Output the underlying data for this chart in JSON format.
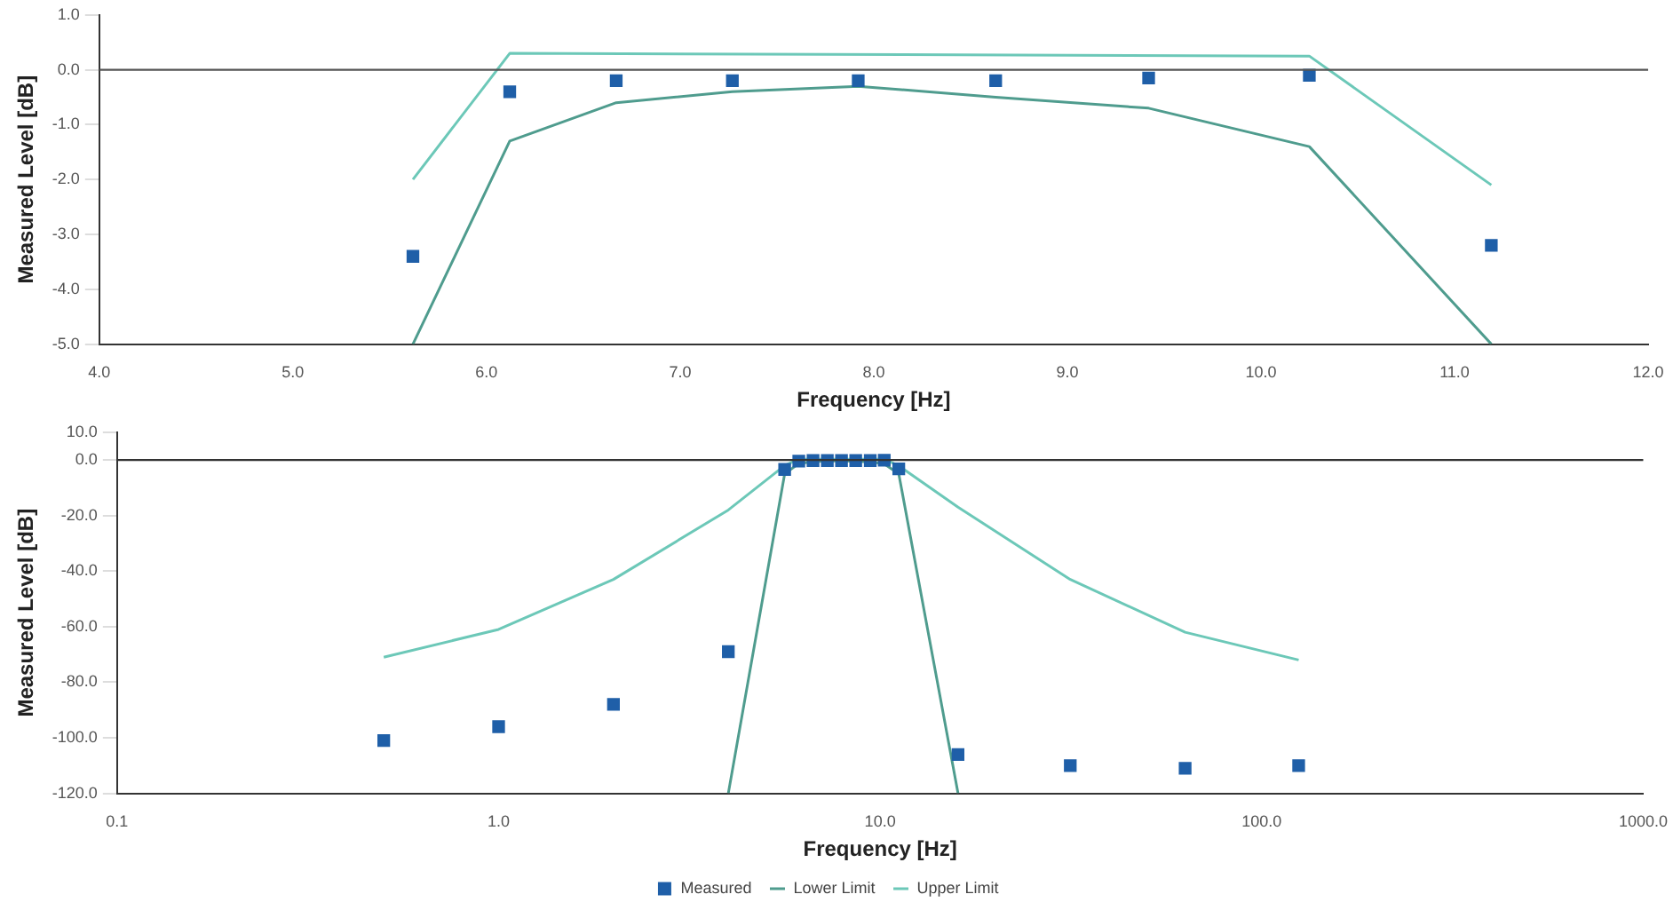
{
  "chart_data": [
    {
      "type": "line",
      "xlabel": "Frequency [Hz]",
      "ylabel": "Measured Level [dB]",
      "xlim": [
        4,
        12
      ],
      "ylim": [
        -5,
        1
      ],
      "xticks": [
        {
          "value": 4,
          "label": "4.0"
        },
        {
          "value": 5,
          "label": "5.0"
        },
        {
          "value": 6,
          "label": "6.0"
        },
        {
          "value": 7,
          "label": "7.0"
        },
        {
          "value": 8,
          "label": "8.0"
        },
        {
          "value": 9,
          "label": "9.0"
        },
        {
          "value": 10,
          "label": "10.0"
        },
        {
          "value": 11,
          "label": "11.0"
        },
        {
          "value": 12,
          "label": "12.0"
        }
      ],
      "yticks": [
        {
          "value": 1,
          "label": "1.0"
        },
        {
          "value": 0,
          "label": "0.0"
        },
        {
          "value": -1,
          "label": "-1.0"
        },
        {
          "value": -2,
          "label": "-2.0"
        },
        {
          "value": -3,
          "label": "-3.0"
        },
        {
          "value": -4,
          "label": "-4.0"
        },
        {
          "value": -5,
          "label": "-5.0"
        }
      ],
      "grid": false,
      "legend": false,
      "ref_lines": [
        {
          "axis": "y",
          "value": 0,
          "color": "#555555"
        }
      ],
      "series": [
        {
          "type": "scatter",
          "marker": "square",
          "color": "#1f5fa8",
          "x": [
            5.62,
            6.12,
            6.67,
            7.27,
            7.92,
            8.63,
            9.42,
            10.25,
            11.19
          ],
          "values": [
            -3.4,
            -0.4,
            -0.2,
            -0.2,
            -0.2,
            -0.2,
            -0.15,
            -0.1,
            -3.2
          ]
        },
        {
          "type": "line",
          "marker": "none",
          "color": "#4f9c8e",
          "x": [
            5.62,
            6.12,
            6.67,
            7.27,
            7.92,
            8.63,
            9.42,
            10.25,
            11.19
          ],
          "values": [
            -5,
            -1.3,
            -0.6,
            -0.4,
            -0.3,
            -0.5,
            -0.7,
            -1.4,
            -5
          ]
        },
        {
          "type": "line",
          "marker": "none",
          "color": "#6cc8b8",
          "x": [
            5.62,
            6.12,
            10.25,
            11.19
          ],
          "values": [
            -2,
            0.3,
            0.25,
            -2.1
          ]
        }
      ]
    },
    {
      "type": "line",
      "xlabel": "Frequency [Hz]",
      "ylabel": "Measured Level [dB]",
      "log": "x",
      "xlim": [
        0.1,
        1000
      ],
      "ylim": [
        -120,
        10
      ],
      "xticks": [
        {
          "value": 0.1,
          "label": "0.1"
        },
        {
          "value": 1,
          "label": "1.0"
        },
        {
          "value": 10,
          "label": "10.0"
        },
        {
          "value": 100,
          "label": "100.0"
        },
        {
          "value": 1000,
          "label": "1000.0"
        }
      ],
      "yticks": [
        {
          "value": 10,
          "label": "10.0"
        },
        {
          "value": 0,
          "label": "0.0"
        },
        {
          "value": -20,
          "label": "-20.0"
        },
        {
          "value": -40,
          "label": "-40.0"
        },
        {
          "value": -60,
          "label": "-60.0"
        },
        {
          "value": -80,
          "label": "-80.0"
        },
        {
          "value": -100,
          "label": "-100.0"
        },
        {
          "value": -120,
          "label": "-120.0"
        }
      ],
      "grid": false,
      "legend": "bottom",
      "ref_lines": [
        {
          "axis": "y",
          "value": 0,
          "color": "#333333"
        }
      ],
      "series": [
        {
          "name": "Measured",
          "type": "scatter",
          "marker": "square",
          "color": "#1f5fa8",
          "x": [
            0.5,
            1,
            2,
            4,
            5.62,
            6.12,
            6.67,
            7.27,
            7.92,
            8.63,
            9.42,
            10.25,
            11.19,
            16,
            31.5,
            63,
            125
          ],
          "values": [
            -101,
            -96,
            -88,
            -69,
            -3.4,
            -0.4,
            -0.2,
            -0.2,
            -0.2,
            -0.2,
            -0.2,
            -0.1,
            -3.2,
            -106,
            -110,
            -111,
            -110
          ]
        },
        {
          "name": "Lower Limit",
          "type": "line",
          "marker": "none",
          "color": "#4f9c8e",
          "x": [
            4,
            5.62,
            6.12,
            6.67,
            7.27,
            7.92,
            8.63,
            9.42,
            10.25,
            11.19,
            16
          ],
          "values": [
            -120,
            -5,
            -1.3,
            -0.6,
            -0.4,
            -0.3,
            -0.5,
            -0.7,
            -1.4,
            -5,
            -120
          ]
        },
        {
          "name": "Upper Limit",
          "type": "line",
          "marker": "none",
          "color": "#6cc8b8",
          "x": [
            0.5,
            1,
            2,
            4,
            5.62,
            6.12,
            10.25,
            11.19,
            16,
            31.5,
            63,
            125
          ],
          "values": [
            -71,
            -61,
            -43,
            -18,
            -2,
            0.3,
            0.3,
            -2.1,
            -17,
            -43,
            -62,
            -72
          ]
        }
      ]
    }
  ]
}
